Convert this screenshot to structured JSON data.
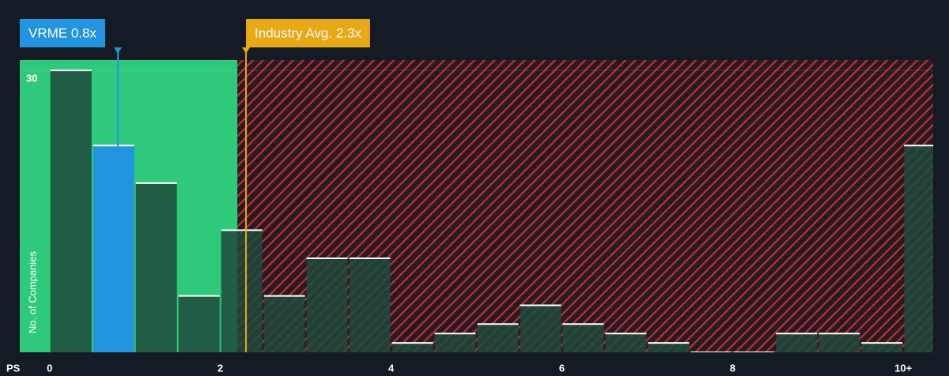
{
  "chart_data": {
    "type": "histogram",
    "x_label": "PS",
    "y_label": "No. of Companies",
    "bins": [
      0,
      0.5,
      1,
      1.5,
      2,
      2.5,
      3,
      3.5,
      4,
      4.5,
      5,
      5.5,
      6,
      6.5,
      7,
      7.5,
      8,
      8.5,
      9,
      9.5,
      10,
      10.5
    ],
    "values": [
      30,
      22,
      18,
      6,
      13,
      6,
      10,
      10,
      1,
      2,
      3,
      5,
      3,
      2,
      1,
      0,
      0,
      2,
      2,
      1,
      22
    ],
    "highlight_index": 1,
    "color": "#1f4a3b",
    "highlight_color": "#2394df",
    "xlim": [
      -0.35,
      10.35
    ],
    "xticks": [
      0,
      2,
      4,
      6,
      8,
      {
        "value": 10,
        "label": "10+"
      }
    ],
    "ylim": [
      0,
      31.1
    ],
    "yticks": [
      30
    ],
    "grid": true,
    "green_region_end": 2.2,
    "annotations": [
      {
        "label": "VRME 0.8x",
        "value": 0.8,
        "color": "#2394df"
      },
      {
        "label": "Industry Avg. 2.3x",
        "value": 2.3,
        "color": "#e9a816"
      }
    ]
  }
}
